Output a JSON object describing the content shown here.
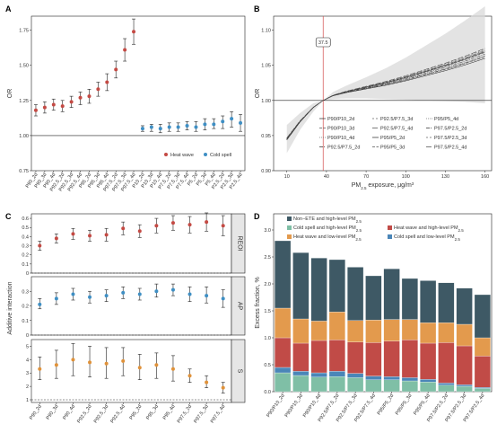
{
  "chart_data": [
    {
      "panel": "A",
      "type": "scatter",
      "ylabel": "OR",
      "ylim": [
        0.75,
        1.85
      ],
      "yticks": [
        "0.75",
        "1.00",
        "1.25",
        "1.50",
        "1.75"
      ],
      "reference_line": 1.0,
      "legend_position": "bottom-right",
      "series": [
        {
          "name": "Heat wave",
          "color": "#c44a44",
          "categories": [
            "P90_2d",
            "P90_3d",
            "P90_4d",
            "P92.5_2d",
            "P92.5_3d",
            "P92.5_4d",
            "P95_2d",
            "P95_3d",
            "P95_4d",
            "P97.5_2d",
            "P97.5_3d",
            "P97.5_4d"
          ],
          "points": [
            [
              1.18,
              1.14,
              1.22
            ],
            [
              1.2,
              1.16,
              1.24
            ],
            [
              1.22,
              1.18,
              1.26
            ],
            [
              1.21,
              1.17,
              1.25
            ],
            [
              1.24,
              1.2,
              1.28
            ],
            [
              1.27,
              1.22,
              1.31
            ],
            [
              1.28,
              1.23,
              1.33
            ],
            [
              1.33,
              1.28,
              1.38
            ],
            [
              1.38,
              1.32,
              1.44
            ],
            [
              1.47,
              1.41,
              1.53
            ],
            [
              1.61,
              1.53,
              1.69
            ],
            [
              1.74,
              1.65,
              1.83
            ]
          ]
        },
        {
          "name": "Cold spell",
          "color": "#3f8fc4",
          "categories": [
            "P10_2d",
            "P10_3d",
            "P10_4d",
            "P7.5_2d",
            "P7.5_3d",
            "P7.5_4d",
            "P5_2d",
            "P5_3d",
            "P5_4d",
            "P2.5_2d",
            "P2.5_3d",
            "P2.5_4d"
          ],
          "points": [
            [
              1.05,
              1.03,
              1.07
            ],
            [
              1.06,
              1.03,
              1.08
            ],
            [
              1.05,
              1.02,
              1.08
            ],
            [
              1.06,
              1.03,
              1.09
            ],
            [
              1.06,
              1.03,
              1.09
            ],
            [
              1.07,
              1.04,
              1.1
            ],
            [
              1.06,
              1.03,
              1.1
            ],
            [
              1.08,
              1.04,
              1.12
            ],
            [
              1.08,
              1.05,
              1.12
            ],
            [
              1.1,
              1.05,
              1.14
            ],
            [
              1.12,
              1.06,
              1.17
            ],
            [
              1.09,
              1.03,
              1.15
            ]
          ]
        }
      ]
    },
    {
      "panel": "B",
      "type": "line",
      "xlabel_main": "PM",
      "xlabel_sub": "2.5",
      "xlabel_rest": " exposure, μg/m",
      "xlabel_sup": "3",
      "ylabel": "OR",
      "xlim": [
        0,
        165
      ],
      "ylim": [
        0.9,
        1.12
      ],
      "xticks": [
        10,
        40,
        70,
        100,
        130,
        160
      ],
      "yticks": [
        "0.90",
        "0.95",
        "1.00",
        "1.05",
        "1.10"
      ],
      "vline": 37.5,
      "vline_label": "37.5",
      "reference_line": 1.0,
      "legend_position": "bottom-right",
      "curve": {
        "x": [
          10,
          20,
          30,
          37.5,
          45,
          55,
          70,
          85,
          100,
          115,
          130,
          145,
          160
        ],
        "y": [
          0.945,
          0.97,
          0.99,
          1.0,
          1.007,
          1.012,
          1.018,
          1.024,
          1.031,
          1.039,
          1.047,
          1.056,
          1.066
        ]
      },
      "band": {
        "lower": [
          0.925,
          0.958,
          0.984,
          1.0,
          1.002,
          1.003,
          1.003,
          1.002,
          1.001,
          1.0,
          0.999,
          0.998,
          0.996
        ],
        "upper": [
          0.965,
          0.982,
          0.996,
          1.0,
          1.012,
          1.021,
          1.033,
          1.046,
          1.061,
          1.078,
          1.095,
          1.114,
          1.134
        ]
      },
      "series": [
        {
          "name": "P90/P10_2d",
          "offset": -0.003
        },
        {
          "name": "P90/P10_3d",
          "offset": -0.002
        },
        {
          "name": "P90/P10_4d",
          "offset": -0.001
        },
        {
          "name": "P92.5/P7.5_2d",
          "offset": 0.0
        },
        {
          "name": "P92.5/P7.5_3d",
          "offset": 0.001
        },
        {
          "name": "P92.5/P7.5_4d",
          "offset": 0.002
        },
        {
          "name": "P95/P5_2d",
          "offset": 0.0015
        },
        {
          "name": "P95/P5_3d",
          "offset": 0.0025
        },
        {
          "name": "P95/P5_4d",
          "offset": 0.003
        },
        {
          "name": "P97.5/P2.5_2d",
          "offset": -0.0015
        },
        {
          "name": "P97.5/P2.5_3d",
          "offset": 0.0035
        },
        {
          "name": "P97.5/P2.5_4d",
          "offset": 0.004
        }
      ]
    },
    {
      "panel": "C",
      "type": "scatter",
      "ylabel": "Additive interaction",
      "categories": [
        "P90_2d",
        "P90_3d",
        "P90_4d",
        "P92.5_2d",
        "P92.5_3d",
        "P92.5_4d",
        "P95_2d",
        "P95_3d",
        "P95_4d",
        "P97.5_2d",
        "P97.5_3d",
        "P97.5_4d"
      ],
      "facets": [
        {
          "name": "REOI",
          "color": "#c44a44",
          "ylim": [
            0,
            0.65
          ],
          "yticks": [
            "0",
            "0.1",
            "0.2",
            "0.3",
            "0.4",
            "0.5",
            "0.6"
          ],
          "points": [
            [
              0.3,
              0.25,
              0.35
            ],
            [
              0.38,
              0.33,
              0.43
            ],
            [
              0.43,
              0.37,
              0.49
            ],
            [
              0.41,
              0.35,
              0.47
            ],
            [
              0.42,
              0.35,
              0.49
            ],
            [
              0.49,
              0.42,
              0.56
            ],
            [
              0.46,
              0.39,
              0.53
            ],
            [
              0.52,
              0.44,
              0.6
            ],
            [
              0.55,
              0.47,
              0.63
            ],
            [
              0.53,
              0.44,
              0.62
            ],
            [
              0.56,
              0.46,
              0.66
            ],
            [
              0.52,
              0.41,
              0.63
            ]
          ]
        },
        {
          "name": "AP",
          "color": "#3f8fc4",
          "ylim": [
            0,
            0.4
          ],
          "yticks": [
            "0",
            "0.1",
            "0.2",
            "0.3"
          ],
          "points": [
            [
              0.21,
              0.18,
              0.25
            ],
            [
              0.25,
              0.21,
              0.29
            ],
            [
              0.28,
              0.24,
              0.32
            ],
            [
              0.26,
              0.22,
              0.3
            ],
            [
              0.27,
              0.23,
              0.31
            ],
            [
              0.29,
              0.25,
              0.33
            ],
            [
              0.28,
              0.24,
              0.32
            ],
            [
              0.3,
              0.26,
              0.35
            ],
            [
              0.31,
              0.27,
              0.35
            ],
            [
              0.28,
              0.23,
              0.33
            ],
            [
              0.27,
              0.22,
              0.33
            ],
            [
              0.25,
              0.19,
              0.31
            ]
          ]
        },
        {
          "name": "S",
          "color": "#e0923a",
          "ylim": [
            0.8,
            5.5
          ],
          "yticks": [
            "1",
            "2",
            "3",
            "4",
            "5"
          ],
          "points": [
            [
              3.3,
              2.5,
              4.2
            ],
            [
              3.6,
              2.6,
              4.7
            ],
            [
              4.0,
              2.8,
              5.2
            ],
            [
              3.8,
              2.7,
              5.0
            ],
            [
              3.7,
              2.6,
              4.9
            ],
            [
              3.9,
              2.8,
              4.9
            ],
            [
              3.4,
              2.5,
              4.4
            ],
            [
              3.6,
              2.6,
              4.5
            ],
            [
              3.3,
              2.4,
              4.3
            ],
            [
              2.8,
              2.3,
              3.3
            ],
            [
              2.3,
              1.9,
              2.8
            ],
            [
              1.9,
              1.5,
              2.3
            ]
          ]
        }
      ]
    },
    {
      "panel": "D",
      "type": "bar",
      "stacked": true,
      "ylabel": "Excess fraction, %",
      "ylim": [
        0,
        3.3
      ],
      "yticks": [
        "0.0",
        "0.5",
        "1.0",
        "1.5",
        "2.0",
        "2.5",
        "3.0"
      ],
      "legend_position": "top",
      "categories": [
        "P90/P10_2d",
        "P90/P10_3d",
        "P90/P10_4d",
        "P92.5/P7.5_2d",
        "P92.5/P7.5_3d",
        "P92.5/P7.5_4d",
        "P95/P5_2d",
        "P95/P5_3d",
        "P95/P5_4d",
        "P97.5/P2.5_2d",
        "P97.5/P2.5_3d",
        "P97.5/P2.5_4d"
      ],
      "series": [
        {
          "label_pre": "Cold spell and high-level PM",
          "label_sub": "2.5",
          "color": "#7fbfa6",
          "values": [
            0.35,
            0.3,
            0.27,
            0.28,
            0.26,
            0.22,
            0.22,
            0.2,
            0.18,
            0.12,
            0.1,
            0.06
          ]
        },
        {
          "label_pre": "Cold spell and low-level PM",
          "label_sub": "2.5",
          "color": "#4a86b8",
          "values": [
            0.1,
            0.08,
            0.08,
            0.1,
            0.08,
            0.07,
            0.06,
            0.06,
            0.05,
            0.04,
            0.03,
            0.02
          ]
        },
        {
          "label_pre": "Heat wave and high-level PM",
          "label_sub": "2.5",
          "color": "#c14b47",
          "values": [
            0.55,
            0.52,
            0.6,
            0.58,
            0.58,
            0.62,
            0.66,
            0.7,
            0.67,
            0.75,
            0.72,
            0.58
          ]
        },
        {
          "label_pre": "Heat wave and low-level PM",
          "label_sub": "2.5",
          "color": "#e39a4d",
          "values": [
            0.55,
            0.45,
            0.36,
            0.52,
            0.4,
            0.42,
            0.4,
            0.38,
            0.38,
            0.37,
            0.4,
            0.34
          ]
        },
        {
          "label_pre": "Non−ETE and high-level PM",
          "label_sub": "2.5",
          "color": "#3e5965",
          "values": [
            1.25,
            1.23,
            1.17,
            0.97,
            0.99,
            0.82,
            0.94,
            0.76,
            0.78,
            0.74,
            0.67,
            0.8
          ]
        }
      ]
    }
  ]
}
